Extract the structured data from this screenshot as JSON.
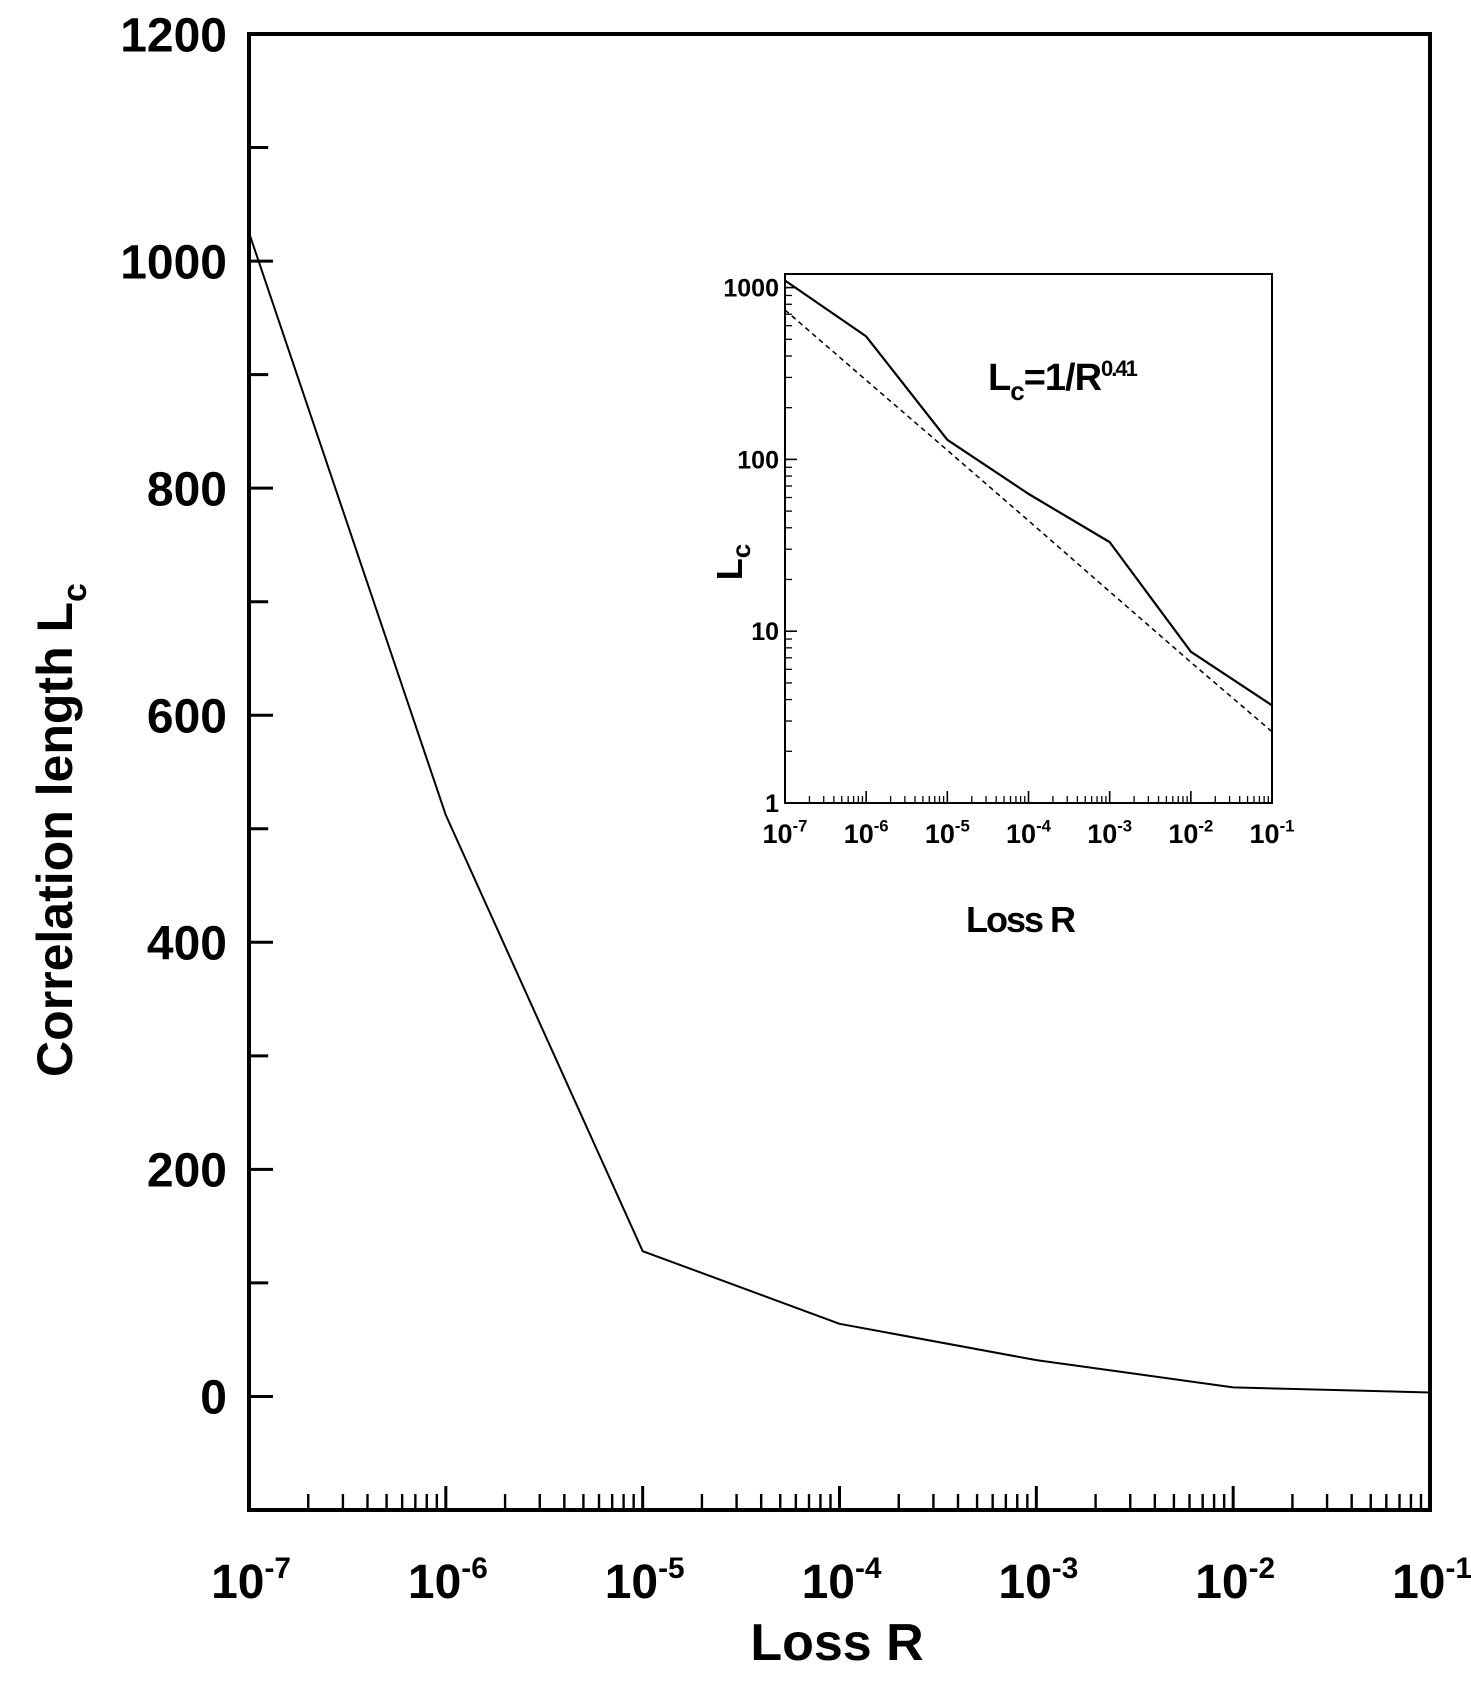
{
  "chart_data": [
    {
      "type": "line",
      "xscale": "log",
      "yscale": "linear",
      "xlim": [
        1e-07,
        0.1
      ],
      "ylim": [
        -100,
        1200
      ],
      "xlabel": "Loss R",
      "ylabel_main": "Correlation length L",
      "ylabel_sub": "c",
      "y_ticks": [
        {
          "value": 0,
          "label": "0"
        },
        {
          "value": 200,
          "label": "200"
        },
        {
          "value": 400,
          "label": "400"
        },
        {
          "value": 600,
          "label": "600"
        },
        {
          "value": 800,
          "label": "800"
        },
        {
          "value": 1000,
          "label": "1000"
        },
        {
          "value": 1200,
          "label": "1200"
        }
      ],
      "x_ticks": [
        {
          "value": 1e-07,
          "base": "10",
          "exp": "-7"
        },
        {
          "value": 1e-06,
          "base": "10",
          "exp": "-6"
        },
        {
          "value": 1e-05,
          "base": "10",
          "exp": "-5"
        },
        {
          "value": 0.0001,
          "base": "10",
          "exp": "-4"
        },
        {
          "value": 0.001,
          "base": "10",
          "exp": "-3"
        },
        {
          "value": 0.01,
          "base": "10",
          "exp": "-2"
        },
        {
          "value": 0.1,
          "base": "10",
          "exp": "-1"
        }
      ],
      "series": [
        {
          "style": "solid",
          "x": [
            1e-07,
            1e-06,
            1e-05,
            0.0001,
            0.001,
            0.01,
            0.1
          ],
          "y": [
            1025,
            512,
            128,
            64,
            32,
            8,
            3.5
          ]
        }
      ]
    },
    {
      "type": "line",
      "role": "inset",
      "xscale": "log",
      "yscale": "log",
      "xlim": [
        1e-07,
        0.1
      ],
      "ylim": [
        1,
        1200
      ],
      "xlabel": "Loss R",
      "ylabel_main": "L",
      "ylabel_sub": "c",
      "annotation": {
        "main": "L",
        "sub": "c",
        "rest": "=1/R",
        "sup": "0.41"
      },
      "y_ticks": [
        {
          "value": 1,
          "label": "1"
        },
        {
          "value": 10,
          "label": "10"
        },
        {
          "value": 100,
          "label": "100"
        },
        {
          "value": 1000,
          "label": "1000"
        }
      ],
      "x_ticks": [
        {
          "value": 1e-07,
          "base": "10",
          "exp": "-7"
        },
        {
          "value": 1e-06,
          "base": "10",
          "exp": "-6"
        },
        {
          "value": 1e-05,
          "base": "10",
          "exp": "-5"
        },
        {
          "value": 0.0001,
          "base": "10",
          "exp": "-4"
        },
        {
          "value": 0.001,
          "base": "10",
          "exp": "-3"
        },
        {
          "value": 0.01,
          "base": "10",
          "exp": "-2"
        },
        {
          "value": 0.1,
          "base": "10",
          "exp": "-1"
        }
      ],
      "series": [
        {
          "style": "solid",
          "x": [
            1e-07,
            1e-06,
            1e-05,
            0.0001,
            0.001,
            0.01,
            0.1
          ],
          "y": [
            1100,
            520,
            130,
            63,
            33,
            7.6,
            3.7
          ]
        },
        {
          "style": "dashed",
          "fit_exponent": 0.41,
          "x": [
            1e-07,
            1e-06,
            1e-05,
            0.0001,
            0.001,
            0.01,
            0.1
          ],
          "y": [
            741,
            289,
            113,
            44,
            17,
            6.6,
            2.6
          ]
        }
      ]
    }
  ]
}
